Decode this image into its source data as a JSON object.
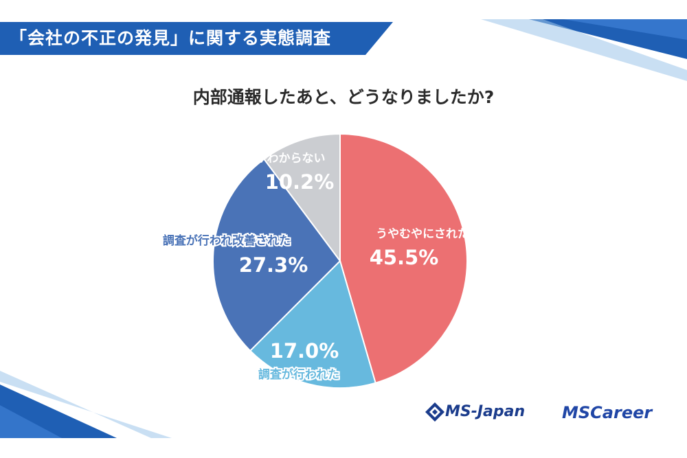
{
  "header": {
    "title": "「会社の不正の発見」に関する実態調査"
  },
  "question": "内部通報したあと、どうなりましたか?",
  "chart_data": {
    "type": "pie",
    "title": "内部通報したあと、どうなりましたか?",
    "slices": [
      {
        "label": "うやむやにされた",
        "value": 45.5,
        "display": "45.5%",
        "color": "#ec7072",
        "text_color": "#ffffff",
        "label_color": "#ffffff"
      },
      {
        "label": "調査が行われた",
        "value": 17.0,
        "display": "17.0%",
        "color": "#67b9de",
        "text_color": "#ffffff",
        "label_color": "#67b9de"
      },
      {
        "label": "調査が行われ改善された",
        "value": 27.3,
        "display": "27.3%",
        "color": "#4a73b7",
        "text_color": "#ffffff",
        "label_color": "#4a73b7"
      },
      {
        "label": "どうなったかわからない",
        "value": 10.2,
        "display": "10.2%",
        "color": "#cbcdd1",
        "text_color": "#ffffff",
        "label_color": "#ffffff"
      }
    ]
  },
  "branding": {
    "ms_japan": "MS-Japan",
    "ms_career": "MSCareer"
  },
  "colors": {
    "banner": "#1f5fb4",
    "accent_dark": "#1b3c8c"
  }
}
